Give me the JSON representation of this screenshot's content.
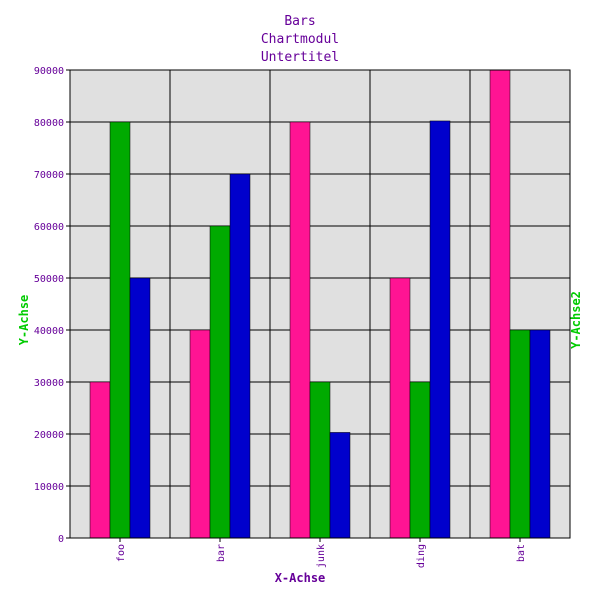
{
  "chart_data": {
    "type": "bar",
    "title": "Bars",
    "subtitle_lines": [
      "Chartmodul",
      "Untertitel"
    ],
    "xlabel": "X-Achse",
    "ylabel": "Y-Achse",
    "ylabel2": "Y-Achse2",
    "categories": [
      "foo",
      "bar",
      "junk",
      "ding",
      "bat"
    ],
    "ylim": [
      0,
      90000
    ],
    "yticks": [
      0,
      10000,
      20000,
      30000,
      40000,
      50000,
      60000,
      70000,
      80000,
      90000
    ],
    "grid": true,
    "series": [
      {
        "values": [
          30000,
          40000,
          80000,
          50000,
          90000
        ],
        "color": "#ff1493"
      },
      {
        "values": [
          80000,
          60000,
          30000,
          30000,
          40000
        ],
        "color": "#00aa00"
      },
      {
        "values": [
          50000,
          70000,
          20300,
          80200,
          40000
        ],
        "color": "#0000cc"
      }
    ],
    "colors": {
      "title": "#660099",
      "axis_text": "#660099",
      "ylabel": "#00cc00",
      "ylabel2": "#00cc00",
      "plot_bg": "#e0e0e0",
      "grid": "#000000"
    }
  }
}
